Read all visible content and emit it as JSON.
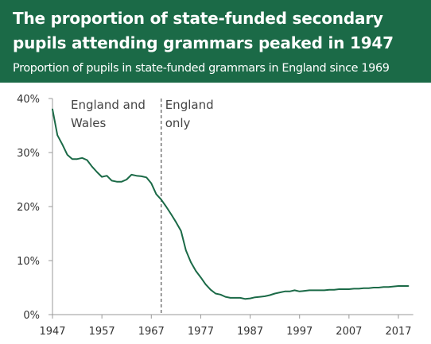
{
  "header": {
    "title": "The proportion of state-funded secondary pupils attending grammars peaked in 1947",
    "subtitle": "Proportion of pupils in state-funded grammars in England since 1969",
    "background_color": "#1b6a47"
  },
  "chart_data": {
    "type": "line",
    "title": "The proportion of state-funded secondary pupils attending grammars peaked in 1947",
    "subtitle": "Proportion of pupils in state-funded grammars in England since 1969",
    "xlim": [
      1947,
      2020
    ],
    "ylim": [
      0,
      40
    ],
    "x_ticks": [
      1947,
      1957,
      1967,
      1977,
      1987,
      1997,
      2007,
      2017
    ],
    "x_tick_labels": [
      "1947",
      "1957",
      "1967",
      "1977",
      "1987",
      "1997",
      "2007",
      "2017"
    ],
    "y_ticks": [
      0,
      10,
      20,
      30,
      40
    ],
    "y_tick_labels": [
      "0%",
      "10%",
      "20%",
      "30%",
      "40%"
    ],
    "grid": false,
    "line_color": "#1b6a47",
    "divider": {
      "x": 1969,
      "style": "dashed",
      "left_label": [
        "England and",
        "Wales"
      ],
      "right_label": [
        "England",
        "only"
      ]
    },
    "series": [
      {
        "values_unit": "percent",
        "x": [
          1947,
          1948,
          1949,
          1950,
          1951,
          1952,
          1953,
          1954,
          1955,
          1956,
          1957,
          1958,
          1959,
          1960,
          1961,
          1962,
          1963,
          1964,
          1965,
          1966,
          1967,
          1968,
          1969,
          1970,
          1971,
          1972,
          1973,
          1974,
          1975,
          1976,
          1977,
          1978,
          1979,
          1980,
          1981,
          1982,
          1983,
          1984,
          1985,
          1986,
          1987,
          1988,
          1989,
          1990,
          1991,
          1992,
          1993,
          1994,
          1995,
          1996,
          1997,
          1998,
          1999,
          2000,
          2001,
          2002,
          2003,
          2004,
          2005,
          2006,
          2007,
          2008,
          2009,
          2010,
          2011,
          2012,
          2013,
          2014,
          2015,
          2016,
          2017,
          2018,
          2019
        ],
        "y": [
          38.0,
          33.2,
          31.5,
          29.6,
          28.8,
          28.8,
          29.0,
          28.6,
          27.4,
          26.4,
          25.5,
          25.7,
          24.8,
          24.6,
          24.6,
          25.0,
          25.9,
          25.7,
          25.6,
          25.4,
          24.3,
          22.3,
          21.3,
          20.0,
          18.6,
          17.1,
          15.5,
          11.9,
          9.7,
          8.1,
          6.9,
          5.6,
          4.6,
          3.9,
          3.7,
          3.3,
          3.1,
          3.1,
          3.1,
          2.9,
          3.0,
          3.2,
          3.3,
          3.4,
          3.6,
          3.9,
          4.1,
          4.3,
          4.3,
          4.5,
          4.3,
          4.4,
          4.5,
          4.5,
          4.5,
          4.5,
          4.6,
          4.6,
          4.7,
          4.7,
          4.7,
          4.8,
          4.8,
          4.9,
          4.9,
          5.0,
          5.0,
          5.1,
          5.1,
          5.2,
          5.3,
          5.3,
          5.3
        ]
      }
    ]
  }
}
